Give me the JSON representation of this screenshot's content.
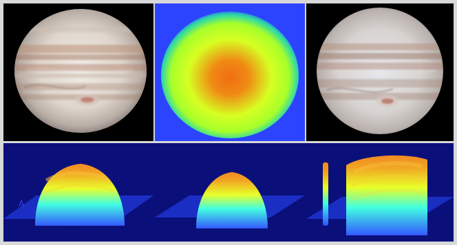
{
  "panels": [
    {
      "row": "top",
      "col": 1,
      "kind": "jupiter-photo"
    },
    {
      "row": "top",
      "col": 2,
      "kind": "radial-heatmap"
    },
    {
      "row": "top",
      "col": 3,
      "kind": "jupiter-photo-processed"
    },
    {
      "row": "bottom",
      "col": 1,
      "kind": "3d-surface-plot"
    },
    {
      "row": "bottom",
      "col": 2,
      "kind": "3d-surface-plot"
    },
    {
      "row": "bottom",
      "col": 3,
      "kind": "3d-surface-plot"
    }
  ],
  "colors": {
    "background": "#000000",
    "plot_background": "#0b0f7a",
    "heatmap_center": "#f06d12",
    "heatmap_mid": "#d7ff22",
    "heatmap_edge": "#2d44ff",
    "surface_low": "#2c52ff",
    "surface_mid": "#e8ff21",
    "surface_high": "#f1861b"
  },
  "labels": {
    "bottom_left_tiny": "A"
  }
}
